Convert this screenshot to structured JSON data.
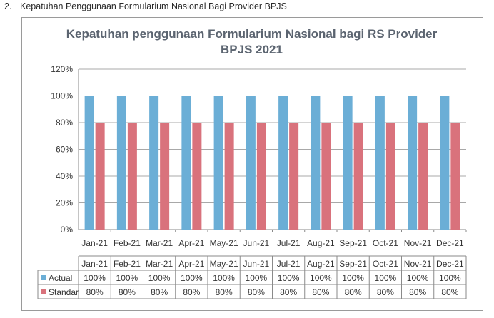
{
  "heading": {
    "number": "2.",
    "text": "Kepatuhan Penggunaan Formularium Nasional Bagi Provider BPJS"
  },
  "colors": {
    "actual": "#6baed6",
    "standar": "#d9727c",
    "grid": "#a8a8a8",
    "title": "#5b6470"
  },
  "chart_data": {
    "type": "bar",
    "title_line1": "Kepatuhan penggunaan Formularium Nasional bagi RS Provider",
    "title_line2": "BPJS 2021",
    "categories": [
      "Jan-21",
      "Feb-21",
      "Mar-21",
      "Apr-21",
      "May-21",
      "Jun-21",
      "Jul-21",
      "Aug-21",
      "Sep-21",
      "Oct-21",
      "Nov-21",
      "Dec-21"
    ],
    "series": [
      {
        "name": "Actual",
        "values": [
          100,
          100,
          100,
          100,
          100,
          100,
          100,
          100,
          100,
          100,
          100,
          100
        ],
        "labels": [
          "100%",
          "100%",
          "100%",
          "100%",
          "100%",
          "100%",
          "100%",
          "100%",
          "100%",
          "100%",
          "100%",
          "100%"
        ]
      },
      {
        "name": "Standar",
        "values": [
          80,
          80,
          80,
          80,
          80,
          80,
          80,
          80,
          80,
          80,
          80,
          80
        ],
        "labels": [
          "80%",
          "80%",
          "80%",
          "80%",
          "80%",
          "80%",
          "80%",
          "80%",
          "80%",
          "80%",
          "80%",
          "80%"
        ]
      }
    ],
    "y_ticks": [
      "0%",
      "20%",
      "40%",
      "60%",
      "80%",
      "100%",
      "120%"
    ],
    "ylim": [
      0,
      120
    ],
    "grid": true,
    "legend": "data-table"
  }
}
